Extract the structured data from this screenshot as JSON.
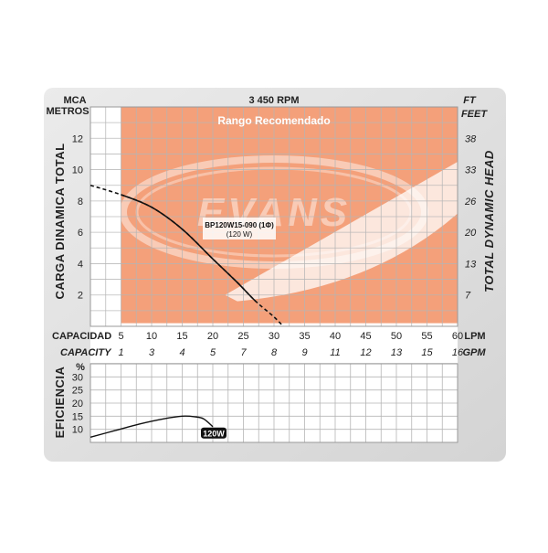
{
  "chart_data": [
    {
      "type": "line",
      "title": "3 450 RPM",
      "range_label": "Rango Recomendado",
      "brand": "EVANS",
      "model_label": "BP120W15-090 (1Φ)",
      "power_label": "(120 W)",
      "y_left_units": [
        "MCA",
        "METROS"
      ],
      "y_right_units": [
        "FT",
        "FEET"
      ],
      "y_left_title": "CARGA DINAMICA TOTAL",
      "y_right_title": "TOTAL DYNAMIC HEAD",
      "x_title_es": "CAPACIDAD",
      "x_title_en": "CAPACITY",
      "x_unit_lpm": "LPM",
      "x_unit_gpm": "GPM",
      "x_ticks_lpm": [
        5,
        10,
        15,
        20,
        25,
        30,
        35,
        40,
        45,
        50,
        55,
        60
      ],
      "x_ticks_gpm": [
        1,
        3,
        4,
        5,
        7,
        8,
        9,
        11,
        12,
        13,
        15,
        16
      ],
      "y_ticks_m": [
        2,
        4,
        6,
        8,
        10,
        12
      ],
      "y_ticks_ft": [
        7,
        13,
        20,
        26,
        33,
        38
      ],
      "xlim": [
        0,
        60
      ],
      "ylim": [
        0,
        14
      ],
      "recommended_range": {
        "x": [
          5,
          60
        ],
        "y": [
          0.2,
          14
        ]
      },
      "series": [
        {
          "x": [
            0,
            5,
            10,
            15,
            20,
            24,
            27,
            30,
            31.5
          ],
          "y": [
            9.0,
            8.4,
            7.6,
            6.2,
            4.3,
            2.8,
            1.6,
            0.6,
            0.0
          ],
          "solid_range": [
            5,
            27
          ]
        }
      ]
    },
    {
      "type": "line",
      "y_title": "EFICIENCIA",
      "y_unit": "%",
      "y_ticks": [
        10,
        15,
        20,
        25,
        30
      ],
      "ylim": [
        5,
        35
      ],
      "xlim": [
        0,
        60
      ],
      "series": [
        {
          "name": "120W",
          "x": [
            0,
            4,
            8,
            12,
            15,
            17,
            18.5,
            20
          ],
          "y": [
            7.0,
            9.5,
            12.0,
            14.0,
            15.0,
            14.8,
            14.0,
            11.0
          ]
        }
      ]
    }
  ],
  "colors": {
    "range_fill": "#f4a07a",
    "range_grid": "#ffffff",
    "grid": "#b5b5b5",
    "frame": "#c9c9c9",
    "curve": "#111111",
    "badge": "#111111"
  }
}
